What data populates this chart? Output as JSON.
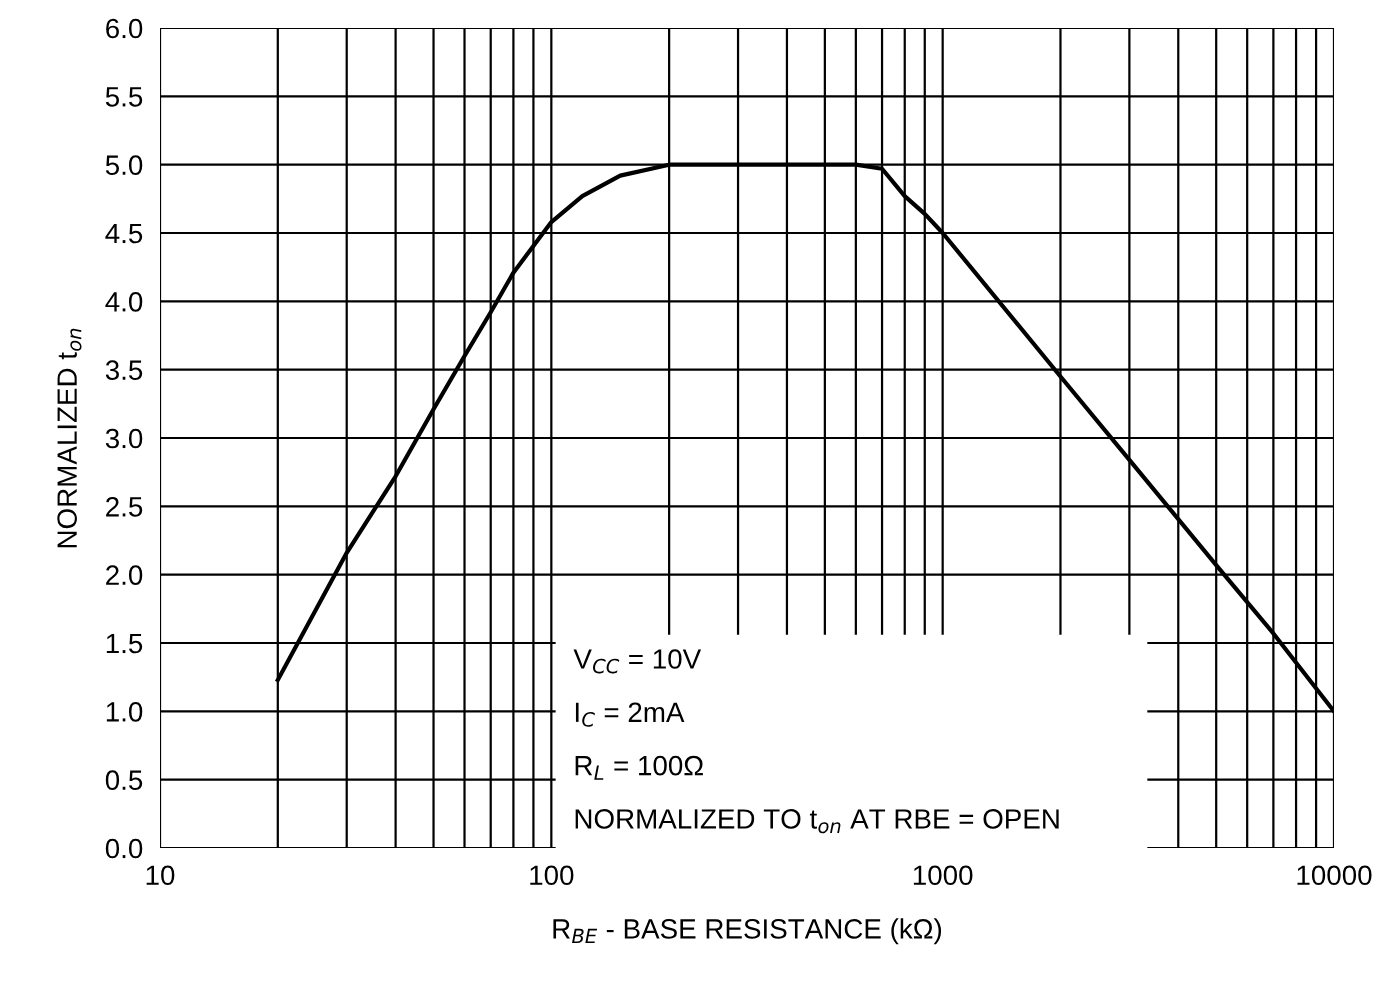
{
  "chart_data": {
    "type": "line",
    "xlabel": "R$_{BE}$ - BASE RESISTANCE (kΩ)",
    "ylabel": "NORMALIZED t$_{on}$",
    "x": [
      20,
      30,
      40,
      50,
      60,
      70,
      80,
      100,
      120,
      150,
      200,
      300,
      400,
      500,
      600,
      700,
      800,
      900,
      1000,
      2000,
      3000,
      5000,
      7000,
      10000
    ],
    "series": [
      {
        "color": "#000000",
        "values": [
          1.23,
          2.16,
          2.72,
          3.21,
          3.6,
          3.92,
          4.21,
          4.58,
          4.77,
          4.92,
          5.0,
          5.0,
          5.0,
          5.0,
          5.0,
          4.97,
          4.77,
          4.64,
          4.5,
          3.45,
          2.84,
          2.07,
          1.57,
          1.0
        ]
      }
    ],
    "log": "x",
    "xlim": [
      10,
      10000
    ],
    "xticks": [
      10,
      100,
      1000,
      10000
    ],
    "ylim": [
      0,
      6
    ],
    "yticks": [
      {
        "value": 0,
        "label": "0.0"
      },
      {
        "value": 0.5,
        "label": "0.5"
      },
      {
        "value": 1,
        "label": "1.0"
      },
      {
        "value": 1.5,
        "label": "1.5"
      },
      {
        "value": 2,
        "label": "2.0"
      },
      {
        "value": 2.5,
        "label": "2.5"
      },
      {
        "value": 3,
        "label": "3.0"
      },
      {
        "value": 3.5,
        "label": "3.5"
      },
      {
        "value": 4,
        "label": "4.0"
      },
      {
        "value": 4.5,
        "label": "4.5"
      },
      {
        "value": 5,
        "label": "5.0"
      },
      {
        "value": 5.5,
        "label": "5.5"
      },
      {
        "value": 6,
        "label": "6.0"
      }
    ],
    "grid": true,
    "marker": "none",
    "line_style": "solid",
    "legend": false,
    "annotations": [
      "V$_{CC}$ = 10V",
      "I$_{C}$ = 2mA",
      "R$_{L}$ = 100Ω",
      "NORMALIZED TO t$_{on}$ AT RBE = OPEN"
    ]
  }
}
